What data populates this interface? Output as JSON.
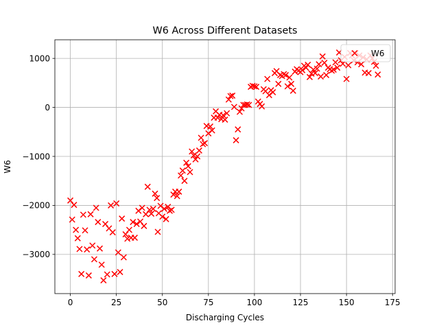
{
  "chart_data": {
    "type": "scatter",
    "title": "W6 Across Different Datasets",
    "xlabel": "Discharging Cycles",
    "ylabel": "W6",
    "xlim": [
      -8.4,
      176.4
    ],
    "ylim": [
      -3800,
      1380
    ],
    "x_ticks": [
      0,
      25,
      50,
      75,
      100,
      125,
      150,
      175
    ],
    "y_ticks": [
      -3000,
      -2000,
      -1000,
      0,
      1000
    ],
    "x_tick_labels": [
      "0",
      "25",
      "50",
      "75",
      "100",
      "125",
      "150",
      "175"
    ],
    "y_tick_labels": [
      "−3000",
      "−2000",
      "−1000",
      "0",
      "1000"
    ],
    "grid": true,
    "legend_position": "upper right",
    "series": [
      {
        "name": "W6",
        "color": "#ff0000",
        "marker": "x",
        "points": [
          [
            0,
            -1900
          ],
          [
            1,
            -2290
          ],
          [
            2,
            -1990
          ],
          [
            3,
            -2500
          ],
          [
            4,
            -2670
          ],
          [
            5,
            -2890
          ],
          [
            6,
            -3400
          ],
          [
            7,
            -2190
          ],
          [
            8,
            -2510
          ],
          [
            9,
            -2900
          ],
          [
            10,
            -3430
          ],
          [
            11,
            -2180
          ],
          [
            12,
            -2820
          ],
          [
            13,
            -3100
          ],
          [
            14,
            -2050
          ],
          [
            15,
            -2340
          ],
          [
            16,
            -2880
          ],
          [
            17,
            -3210
          ],
          [
            18,
            -3530
          ],
          [
            19,
            -2380
          ],
          [
            20,
            -3410
          ],
          [
            21,
            -2470
          ],
          [
            22,
            -2000
          ],
          [
            23,
            -2550
          ],
          [
            24,
            -3400
          ],
          [
            25,
            -1960
          ],
          [
            26,
            -2960
          ],
          [
            27,
            -3360
          ],
          [
            28,
            -2270
          ],
          [
            29,
            -3060
          ],
          [
            30,
            -2590
          ],
          [
            31,
            -2680
          ],
          [
            32,
            -2500
          ],
          [
            33,
            -2660
          ],
          [
            34,
            -2340
          ],
          [
            35,
            -2660
          ],
          [
            36,
            -2380
          ],
          [
            37,
            -2110
          ],
          [
            38,
            -2330
          ],
          [
            39,
            -2050
          ],
          [
            40,
            -2420
          ],
          [
            41,
            -2180
          ],
          [
            42,
            -1620
          ],
          [
            43,
            -2090
          ],
          [
            44,
            -2170
          ],
          [
            45,
            -2070
          ],
          [
            46,
            -1760
          ],
          [
            47,
            -1850
          ],
          [
            47.5,
            -2540
          ],
          [
            48,
            -2160
          ],
          [
            49,
            -2010
          ],
          [
            50,
            -2230
          ],
          [
            51,
            -2070
          ],
          [
            52,
            -2280
          ],
          [
            53,
            -2030
          ],
          [
            54,
            -2110
          ],
          [
            55,
            -2090
          ],
          [
            56,
            -1780
          ],
          [
            57,
            -1720
          ],
          [
            58,
            -1810
          ],
          [
            59,
            -1720
          ],
          [
            60,
            -1390
          ],
          [
            61,
            -1290
          ],
          [
            62,
            -1500
          ],
          [
            63,
            -1130
          ],
          [
            64,
            -1200
          ],
          [
            65,
            -1320
          ],
          [
            66,
            -900
          ],
          [
            67,
            -980
          ],
          [
            68,
            -1060
          ],
          [
            69,
            -1000
          ],
          [
            70,
            -880
          ],
          [
            71,
            -620
          ],
          [
            72,
            -750
          ],
          [
            73,
            -730
          ],
          [
            74,
            -380
          ],
          [
            75,
            -530
          ],
          [
            76,
            -390
          ],
          [
            77,
            -470
          ],
          [
            78,
            -210
          ],
          [
            79,
            -80
          ],
          [
            80,
            -210
          ],
          [
            81,
            -150
          ],
          [
            82,
            -240
          ],
          [
            83,
            -160
          ],
          [
            84,
            -250
          ],
          [
            85,
            -120
          ],
          [
            86,
            160
          ],
          [
            87,
            230
          ],
          [
            88,
            240
          ],
          [
            89,
            10
          ],
          [
            90,
            -670
          ],
          [
            91,
            -450
          ],
          [
            92,
            -90
          ],
          [
            93,
            -20
          ],
          [
            94,
            50
          ],
          [
            95,
            50
          ],
          [
            96,
            60
          ],
          [
            97,
            50
          ],
          [
            98,
            420
          ],
          [
            99,
            440
          ],
          [
            100,
            430
          ],
          [
            101,
            420
          ],
          [
            102,
            120
          ],
          [
            103,
            70
          ],
          [
            104,
            20
          ],
          [
            105,
            370
          ],
          [
            106,
            330
          ],
          [
            107,
            580
          ],
          [
            108,
            250
          ],
          [
            109,
            350
          ],
          [
            110,
            310
          ],
          [
            111,
            700
          ],
          [
            112,
            740
          ],
          [
            113,
            480
          ],
          [
            114,
            660
          ],
          [
            115,
            640
          ],
          [
            116,
            680
          ],
          [
            117,
            660
          ],
          [
            118,
            430
          ],
          [
            119,
            610
          ],
          [
            120,
            480
          ],
          [
            121,
            340
          ],
          [
            122,
            730
          ],
          [
            123,
            780
          ],
          [
            124,
            750
          ],
          [
            125,
            720
          ],
          [
            126,
            760
          ],
          [
            127,
            850
          ],
          [
            128,
            810
          ],
          [
            129,
            870
          ],
          [
            130,
            620
          ],
          [
            131,
            690
          ],
          [
            132,
            770
          ],
          [
            133,
            700
          ],
          [
            134,
            790
          ],
          [
            135,
            880
          ],
          [
            136,
            630
          ],
          [
            137,
            1040
          ],
          [
            138,
            910
          ],
          [
            139,
            660
          ],
          [
            140,
            810
          ],
          [
            141,
            780
          ],
          [
            142,
            750
          ],
          [
            143,
            770
          ],
          [
            144,
            920
          ],
          [
            145,
            810
          ],
          [
            146,
            1120
          ],
          [
            147,
            960
          ],
          [
            148,
            890
          ],
          [
            149,
            1030
          ],
          [
            150,
            580
          ],
          [
            151,
            860
          ],
          [
            152,
            1110
          ],
          [
            153,
            1060
          ],
          [
            154,
            960
          ],
          [
            155,
            1110
          ],
          [
            156,
            920
          ],
          [
            157,
            1060
          ],
          [
            158,
            880
          ],
          [
            159,
            1020
          ],
          [
            160,
            710
          ],
          [
            161,
            980
          ],
          [
            162,
            700
          ],
          [
            163,
            1060
          ],
          [
            164,
            1000
          ],
          [
            165,
            930
          ],
          [
            166,
            850
          ],
          [
            167,
            670
          ]
        ]
      }
    ]
  }
}
